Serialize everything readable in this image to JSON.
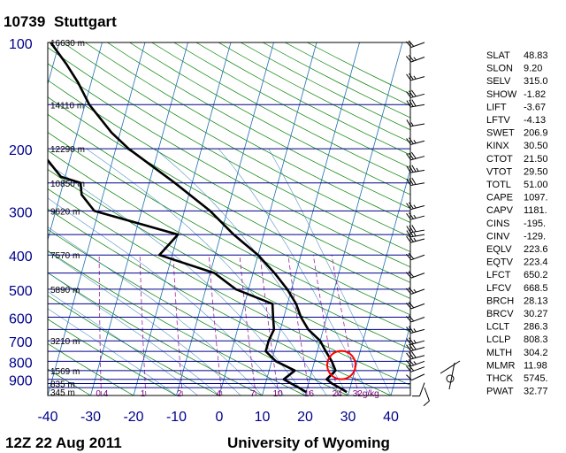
{
  "header": {
    "station_id": "10739",
    "station_name": "Stuttgart"
  },
  "footer": {
    "time": "12Z 22 Aug 2011",
    "source": "University of Wyoming"
  },
  "highlight": {
    "color": "#ff0000",
    "pressure": 820,
    "temperature": 26.5
  },
  "chart_data": {
    "type": "skew-t",
    "x_axis": {
      "ticks": [
        -40,
        -30,
        -20,
        -10,
        0,
        10,
        20,
        30,
        40
      ],
      "range": [
        -40,
        45
      ],
      "unit": "C"
    },
    "y_axis": {
      "scale": "log",
      "ticks": [
        100,
        200,
        300,
        400,
        500,
        600,
        700,
        800,
        900
      ],
      "range": [
        1000,
        100
      ],
      "isobars": [
        100,
        150,
        200,
        250,
        300,
        350,
        400,
        450,
        500,
        550,
        600,
        650,
        700,
        750,
        800,
        850,
        900,
        925,
        950,
        1000
      ]
    },
    "height_labels": [
      {
        "p": 100,
        "text": "16630 m"
      },
      {
        "p": 150,
        "text": "14110 m"
      },
      {
        "p": 200,
        "text": "12290 m"
      },
      {
        "p": 250,
        "text": "10850 m"
      },
      {
        "p": 300,
        "text": "9620 m"
      },
      {
        "p": 400,
        "text": "7570 m"
      },
      {
        "p": 500,
        "text": "5890 m"
      },
      {
        "p": 700,
        "text": "3210 m"
      },
      {
        "p": 850,
        "text": "1569 m"
      },
      {
        "p": 925,
        "text": "835 m"
      },
      {
        "p": 978,
        "text": "345 m"
      }
    ],
    "mixing_ratio_labels": [
      "0.4",
      "1",
      "2",
      "4",
      "7",
      "10",
      "16",
      "24",
      "32g/kg"
    ],
    "mixing_ratio_values": [
      0.4,
      1,
      2,
      4,
      7,
      10,
      16,
      24,
      32
    ],
    "temperature": [
      {
        "p": 978,
        "t": 29.5
      },
      {
        "p": 950,
        "t": 27.5
      },
      {
        "p": 925,
        "t": 25.5
      },
      {
        "p": 900,
        "t": 24
      },
      {
        "p": 850,
        "t": 25.5
      },
      {
        "p": 800,
        "t": 24
      },
      {
        "p": 750,
        "t": 22
      },
      {
        "p": 700,
        "t": 20
      },
      {
        "p": 650,
        "t": 16.5
      },
      {
        "p": 600,
        "t": 14
      },
      {
        "p": 550,
        "t": 12
      },
      {
        "p": 500,
        "t": 9
      },
      {
        "p": 450,
        "t": 5
      },
      {
        "p": 400,
        "t": 0
      },
      {
        "p": 350,
        "t": -7
      },
      {
        "p": 300,
        "t": -14
      },
      {
        "p": 250,
        "t": -24
      },
      {
        "p": 200,
        "t": -37
      },
      {
        "p": 180,
        "t": -42
      },
      {
        "p": 150,
        "t": -49
      },
      {
        "p": 130,
        "t": -53
      },
      {
        "p": 115,
        "t": -57
      },
      {
        "p": 100,
        "t": -62
      }
    ],
    "dewpoint": [
      {
        "p": 978,
        "t": 20
      },
      {
        "p": 950,
        "t": 18
      },
      {
        "p": 925,
        "t": 16
      },
      {
        "p": 900,
        "t": 14
      },
      {
        "p": 850,
        "t": 16
      },
      {
        "p": 800,
        "t": 11
      },
      {
        "p": 750,
        "t": 8
      },
      {
        "p": 700,
        "t": 8
      },
      {
        "p": 650,
        "t": 8.5
      },
      {
        "p": 600,
        "t": 7.5
      },
      {
        "p": 550,
        "t": 6.5
      },
      {
        "p": 500,
        "t": -3
      },
      {
        "p": 450,
        "t": -9
      },
      {
        "p": 400,
        "t": -23
      },
      {
        "p": 350,
        "t": -20
      },
      {
        "p": 300,
        "t": -41
      },
      {
        "p": 270,
        "t": -45
      },
      {
        "p": 250,
        "t": -46
      },
      {
        "p": 240,
        "t": -51
      },
      {
        "p": 200,
        "t": -58
      },
      {
        "p": 180,
        "t": -66
      },
      {
        "p": 150,
        "t": -75
      },
      {
        "p": 130,
        "t": -76
      },
      {
        "p": 110,
        "t": -77
      },
      {
        "p": 100,
        "t": -77
      }
    ],
    "indices": [
      {
        "key": "SLAT",
        "value": "48.83"
      },
      {
        "key": "SLON",
        "value": "9.20"
      },
      {
        "key": "SELV",
        "value": "315.0"
      },
      {
        "key": "SHOW",
        "value": "-1.82"
      },
      {
        "key": "LIFT",
        "value": "-3.67"
      },
      {
        "key": "LFTV",
        "value": "-4.13"
      },
      {
        "key": "SWET",
        "value": "206.9"
      },
      {
        "key": "KINX",
        "value": "30.50"
      },
      {
        "key": "CTOT",
        "value": "21.50"
      },
      {
        "key": "VTOT",
        "value": "29.50"
      },
      {
        "key": "TOTL",
        "value": "51.00"
      },
      {
        "key": "CAPE",
        "value": "1097."
      },
      {
        "key": "CAPV",
        "value": "1181."
      },
      {
        "key": "CINS",
        "value": "-195."
      },
      {
        "key": "CINV",
        "value": "-129."
      },
      {
        "key": "EQLV",
        "value": "223.6"
      },
      {
        "key": "EQTV",
        "value": "223.4"
      },
      {
        "key": "LFCT",
        "value": "650.2"
      },
      {
        "key": "LFCV",
        "value": "668.5"
      },
      {
        "key": "BRCH",
        "value": "28.13"
      },
      {
        "key": "BRCV",
        "value": "30.27"
      },
      {
        "key": "LCLT",
        "value": "286.3"
      },
      {
        "key": "LCLP",
        "value": "808.3"
      },
      {
        "key": "MLTH",
        "value": "304.2"
      },
      {
        "key": "MLMR",
        "value": "11.98"
      },
      {
        "key": "THCK",
        "value": "5745."
      },
      {
        "key": "PWAT",
        "value": "32.77"
      }
    ],
    "wind_barbs": [
      {
        "p": 100,
        "dir": 250,
        "kt": 20
      },
      {
        "p": 110,
        "dir": 250,
        "kt": 25
      },
      {
        "p": 125,
        "dir": 255,
        "kt": 25
      },
      {
        "p": 140,
        "dir": 255,
        "kt": 30
      },
      {
        "p": 150,
        "dir": 260,
        "kt": 30
      },
      {
        "p": 170,
        "dir": 260,
        "kt": 15
      },
      {
        "p": 190,
        "dir": 255,
        "kt": 25
      },
      {
        "p": 210,
        "dir": 255,
        "kt": 30
      },
      {
        "p": 230,
        "dir": 260,
        "kt": 35
      },
      {
        "p": 250,
        "dir": 260,
        "kt": 30
      },
      {
        "p": 290,
        "dir": 255,
        "kt": 25
      },
      {
        "p": 310,
        "dir": 255,
        "kt": 25
      },
      {
        "p": 340,
        "dir": 260,
        "kt": 30
      },
      {
        "p": 350,
        "dir": 260,
        "kt": 25
      },
      {
        "p": 360,
        "dir": 255,
        "kt": 25
      },
      {
        "p": 400,
        "dir": 250,
        "kt": 20
      },
      {
        "p": 450,
        "dir": 250,
        "kt": 20
      },
      {
        "p": 500,
        "dir": 250,
        "kt": 25
      },
      {
        "p": 550,
        "dir": 250,
        "kt": 20
      },
      {
        "p": 600,
        "dir": 250,
        "kt": 20
      },
      {
        "p": 650,
        "dir": 255,
        "kt": 25
      },
      {
        "p": 700,
        "dir": 255,
        "kt": 25
      },
      {
        "p": 730,
        "dir": 255,
        "kt": 30
      },
      {
        "p": 770,
        "dir": 255,
        "kt": 30
      },
      {
        "p": 800,
        "dir": 250,
        "kt": 25
      },
      {
        "p": 830,
        "dir": 250,
        "kt": 20
      },
      {
        "p": 870,
        "dir": 245,
        "kt": 10
      },
      {
        "p": 920,
        "dir": 200,
        "kt": 10
      },
      {
        "p": 950,
        "dir": 160,
        "kt": 10
      }
    ]
  }
}
